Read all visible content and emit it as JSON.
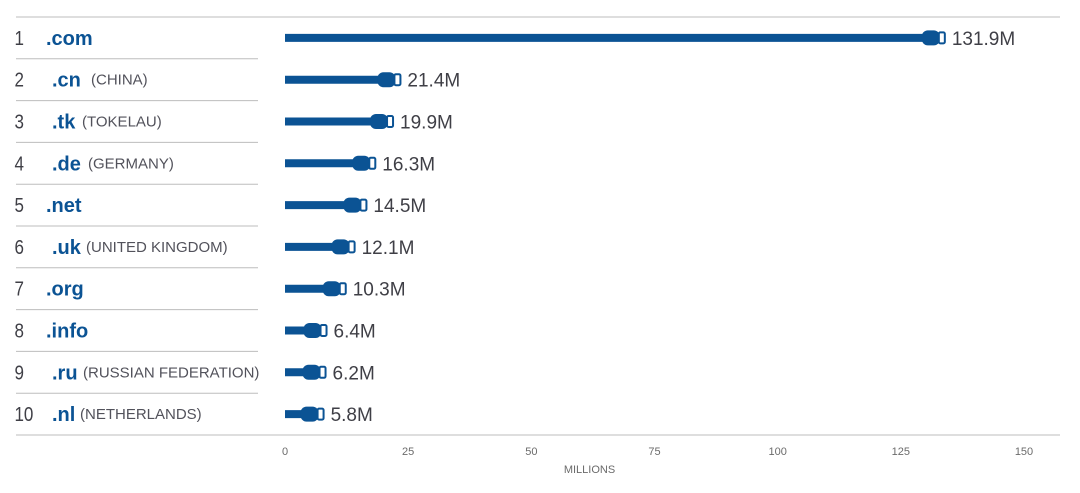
{
  "chart_data": {
    "type": "bar",
    "categories": [
      ".com",
      ".cn",
      ".tk",
      ".de",
      ".net",
      ".uk",
      ".org",
      ".info",
      ".ru",
      ".nl"
    ],
    "ranks": [
      "1",
      "2",
      "3",
      "4",
      "5",
      "6",
      "7",
      "8",
      "9",
      "10"
    ],
    "countries": [
      "",
      "(CHINA)",
      "(TOKELAU)",
      "(GERMANY)",
      "",
      "(UNITED KINGDOM)",
      "",
      "",
      "(RUSSIAN FEDERATION)",
      "(NETHERLANDS)"
    ],
    "values": [
      131.9,
      21.4,
      19.9,
      16.3,
      14.5,
      12.1,
      10.3,
      6.4,
      6.2,
      5.8
    ],
    "value_labels": [
      "131.9M",
      "21.4M",
      "19.9M",
      "16.3M",
      "14.5M",
      "12.1M",
      "10.3M",
      "6.4M",
      "6.2M",
      "5.8M"
    ],
    "xlabel": "MILLIONS",
    "ylabel": "",
    "xlim": [
      0,
      150
    ],
    "xticks": [
      0,
      25,
      50,
      75,
      100,
      125,
      150
    ],
    "grid": false,
    "orientation": "horizontal",
    "colors": {
      "bar": "#0b5394",
      "tld_text": "#0b5394",
      "divider": "#bdbdbd"
    }
  }
}
